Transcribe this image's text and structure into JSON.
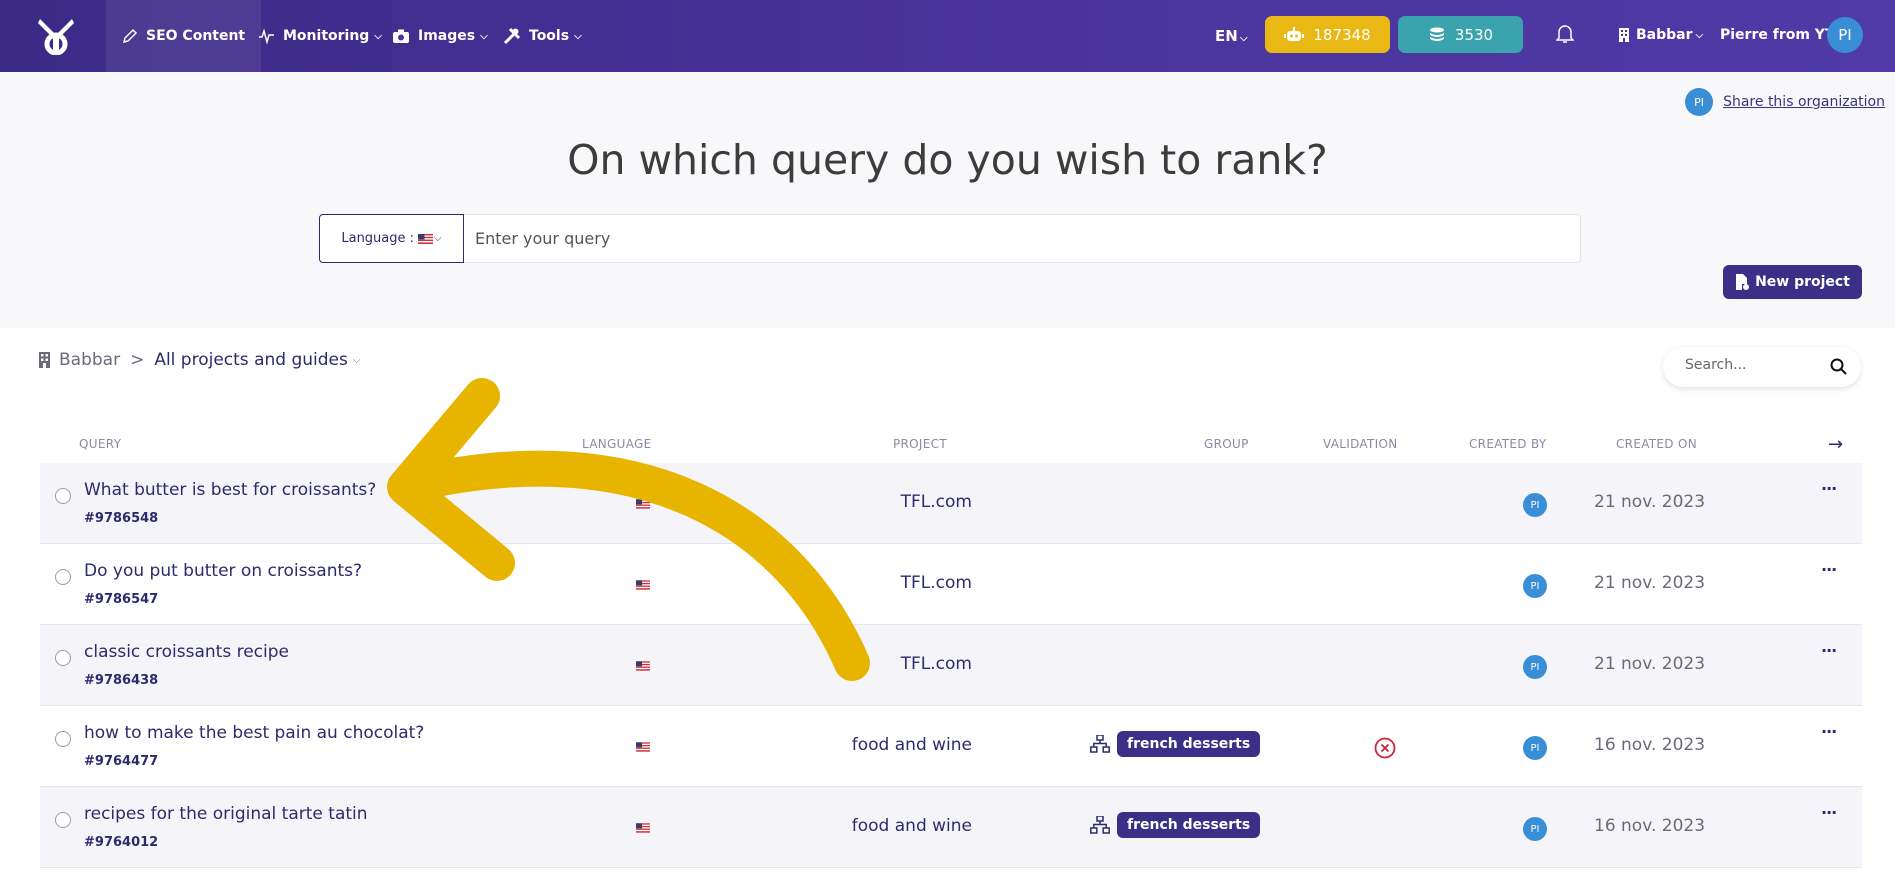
{
  "header": {
    "nav": [
      {
        "label": "SEO Content",
        "icon": "pencil-icon",
        "active": true
      },
      {
        "label": "Monitoring",
        "icon": "pulse-icon"
      },
      {
        "label": "Images",
        "icon": "camera-icon"
      },
      {
        "label": "Tools",
        "icon": "tools-icon"
      }
    ],
    "language": "EN",
    "credits_robot": "187348",
    "credits_coins": "3530",
    "organization": "Babbar",
    "user_name": "Pierre from YTG",
    "user_initials": "PI"
  },
  "share": {
    "initials": "PI",
    "label": "Share this organization"
  },
  "hero": {
    "title": "On which query do you wish to rank?",
    "language_label": "Language :",
    "query_placeholder": "Enter your query"
  },
  "new_project_label": "New project",
  "breadcrumb": {
    "root": "Babbar",
    "separator": ">",
    "current": "All projects and guides"
  },
  "search_placeholder": "Search...",
  "columns": {
    "query": "QUERY",
    "language": "LANGUAGE",
    "project": "PROJECT",
    "group": "GROUP",
    "validation": "VALIDATION",
    "created_by": "CREATED BY",
    "created_on": "CREATED ON"
  },
  "rows": [
    {
      "query": "What butter is best for croissants?",
      "id": "#9786548",
      "project": "TFL.com",
      "group": "",
      "validation": "",
      "creator": "PI",
      "date": "21 nov. 2023"
    },
    {
      "query": "Do you put butter on croissants?",
      "id": "#9786547",
      "project": "TFL.com",
      "group": "",
      "validation": "",
      "creator": "PI",
      "date": "21 nov. 2023"
    },
    {
      "query": "classic croissants recipe",
      "id": "#9786438",
      "project": "TFL.com",
      "group": "",
      "validation": "",
      "creator": "PI",
      "date": "21 nov. 2023"
    },
    {
      "query": "how to make the best pain au chocolat?",
      "id": "#9764477",
      "project": "food and wine",
      "group": "french desserts",
      "validation": "rejected",
      "creator": "PI",
      "date": "16 nov. 2023"
    },
    {
      "query": "recipes for the original tarte tatin",
      "id": "#9764012",
      "project": "food and wine",
      "group": "french desserts",
      "validation": "",
      "creator": "PI",
      "date": "16 nov. 2023"
    }
  ],
  "colors": {
    "header": "#4a349c",
    "accent": "#3b2f88",
    "yellow": "#e9b815",
    "teal": "#3aa3ae",
    "annotation_arrow": "#e7b400"
  }
}
